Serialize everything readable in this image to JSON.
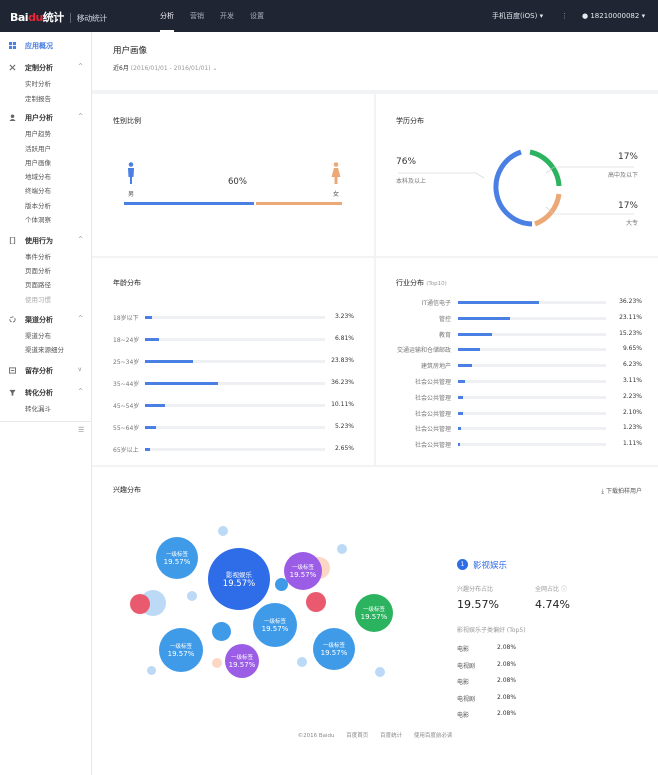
{
  "topbar": {
    "logo": "Bai",
    "logo_mark": "du",
    "logo_brand": "统计",
    "product": "移动统计",
    "nav": [
      "分析",
      "营销",
      "开发",
      "设置"
    ],
    "app_select": "手机百度(iOS)",
    "user": "18210000082"
  },
  "sidebar": {
    "groups": [
      {
        "title": "应用概况",
        "items": []
      },
      {
        "title": "定制分析",
        "items": [
          "实时分析",
          "定制报告"
        ]
      },
      {
        "title": "用户分析",
        "items": [
          "用户趋势",
          "活跃用户",
          "用户画像",
          "地域分布",
          "终端分布",
          "版本分析",
          "个体洞察"
        ]
      },
      {
        "title": "使用行为",
        "items": [
          "事件分析",
          "页面分析",
          "页面路径",
          "使用习惯"
        ]
      },
      {
        "title": "渠道分析",
        "items": [
          "渠道分布",
          "渠道来源细分"
        ]
      },
      {
        "title": "留存分析",
        "items": []
      },
      {
        "title": "转化分析",
        "items": [
          "转化漏斗"
        ]
      }
    ]
  },
  "page": {
    "title": "用户画像",
    "range_label": "近6月",
    "range_dates": "(2016/01/01 - 2016/01/01)"
  },
  "gender": {
    "title": "性别比例",
    "male": "男",
    "female": "女",
    "percent_label": "60%",
    "male_share": 0.6
  },
  "education": {
    "title": "学历分布",
    "left_pct": "76%",
    "left_label": "本科及以上",
    "tr_pct": "17%",
    "tr_label": "高中及以下",
    "br_pct": "17%",
    "br_label": "大专"
  },
  "age": {
    "title": "年龄分布",
    "rows": [
      {
        "label": "18岁以下",
        "pct": "3.23%",
        "value": 3.23
      },
      {
        "label": "18~24岁",
        "pct": "6.81%",
        "value": 6.81
      },
      {
        "label": "25~34岁",
        "pct": "23.83%",
        "value": 23.83
      },
      {
        "label": "35~44岁",
        "pct": "36.23%",
        "value": 36.23
      },
      {
        "label": "45~54岁",
        "pct": "10.11%",
        "value": 10.11
      },
      {
        "label": "55~64岁",
        "pct": "5.23%",
        "value": 5.23
      },
      {
        "label": "65岁以上",
        "pct": "2.65%",
        "value": 2.65
      }
    ]
  },
  "industry": {
    "title": "行业分布",
    "subtitle": "(Top10)",
    "rows": [
      {
        "label": "IT通信电子",
        "pct": "36.23%",
        "value": 36.23
      },
      {
        "label": "管控",
        "pct": "23.11%",
        "value": 23.11
      },
      {
        "label": "教育",
        "pct": "15.23%",
        "value": 15.23
      },
      {
        "label": "交通运输和仓储邮政",
        "pct": "9.65%",
        "value": 9.65
      },
      {
        "label": "建筑房地产",
        "pct": "6.23%",
        "value": 6.23
      },
      {
        "label": "社会公共管理",
        "pct": "3.11%",
        "value": 3.11
      },
      {
        "label": "社会公共管理",
        "pct": "2.23%",
        "value": 2.23
      },
      {
        "label": "社会公共管理",
        "pct": "2.10%",
        "value": 2.1
      },
      {
        "label": "社会公共管理",
        "pct": "1.23%",
        "value": 1.23
      },
      {
        "label": "社会公共管理",
        "pct": "1.11%",
        "value": 1.11
      }
    ]
  },
  "interest": {
    "title": "兴趣分布",
    "download": "下载拍样用户",
    "bubble_label": "一级标签",
    "bubble_pct": "19.57%",
    "main_bubble": "影视娱乐",
    "detail_index": "1",
    "detail_title": "影视娱乐",
    "share_label": "兴趣分布占比",
    "share_value": "19.57%",
    "net_label": "全网占比",
    "net_value": "4.74%",
    "top_title": "影视娱乐子类偏好 (Top5)",
    "top_rows": [
      {
        "name": "电影",
        "pct": "2.08%"
      },
      {
        "name": "电视剧",
        "pct": "2.08%"
      },
      {
        "name": "电影",
        "pct": "2.08%"
      },
      {
        "name": "电视剧",
        "pct": "2.08%"
      },
      {
        "name": "电影",
        "pct": "2.08%"
      }
    ]
  },
  "colors": {
    "blue": "#4a7fe3",
    "green": "#2cb35f",
    "orange": "#eda878",
    "purple": "#9b5de5",
    "red": "#ea5a6e"
  },
  "footer": [
    "©2016 Baidu",
    "百度首页",
    "百度统计",
    "使用百度前必读"
  ]
}
